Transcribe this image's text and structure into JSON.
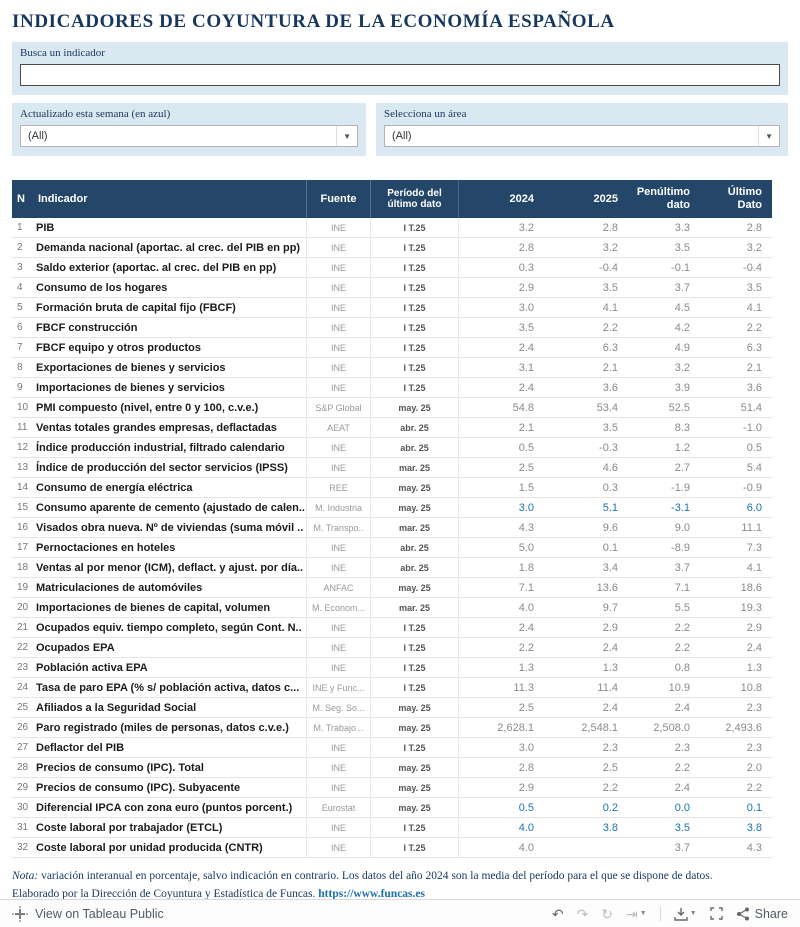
{
  "title": "INDICADORES DE COYUNTURA DE LA ECONOMÍA ESPAÑOLA",
  "search": {
    "label": "Busca un indicador",
    "value": ""
  },
  "filters": [
    {
      "label": "Actualizado esta semana (en azul)",
      "value": "(All)"
    },
    {
      "label": "Selecciona un área",
      "value": "(All)"
    }
  ],
  "table": {
    "headers": [
      "N",
      "Indicador",
      "Fuente",
      "Período del último dato",
      "2024",
      "2025",
      "Penúltimo dato",
      "Último Dato"
    ],
    "rows": [
      {
        "n": "1",
        "indicador": "PIB",
        "fuente": "INE",
        "periodo": "I T.25",
        "y2024": "3.2",
        "y2025": "2.8",
        "penultimo": "3.3",
        "ultimo": "2.8",
        "updated": false
      },
      {
        "n": "2",
        "indicador": "Demanda nacional (aportac. al crec. del PIB en pp)",
        "fuente": "INE",
        "periodo": "I T.25",
        "y2024": "2.8",
        "y2025": "3.2",
        "penultimo": "3.5",
        "ultimo": "3.2",
        "updated": false
      },
      {
        "n": "3",
        "indicador": "Saldo exterior (aportac. al crec. del PIB en pp)",
        "fuente": "INE",
        "periodo": "I T.25",
        "y2024": "0.3",
        "y2025": "-0.4",
        "penultimo": "-0.1",
        "ultimo": "-0.4",
        "updated": false
      },
      {
        "n": "4",
        "indicador": "Consumo de los hogares",
        "fuente": "INE",
        "periodo": "I T.25",
        "y2024": "2.9",
        "y2025": "3.5",
        "penultimo": "3.7",
        "ultimo": "3.5",
        "updated": false
      },
      {
        "n": "5",
        "indicador": "Formación bruta de capital fijo (FBCF)",
        "fuente": "INE",
        "periodo": "I T.25",
        "y2024": "3.0",
        "y2025": "4.1",
        "penultimo": "4.5",
        "ultimo": "4.1",
        "updated": false
      },
      {
        "n": "6",
        "indicador": "FBCF construcción",
        "fuente": "INE",
        "periodo": "I T.25",
        "y2024": "3.5",
        "y2025": "2.2",
        "penultimo": "4.2",
        "ultimo": "2.2",
        "updated": false
      },
      {
        "n": "7",
        "indicador": "FBCF equipo y otros productos",
        "fuente": "INE",
        "periodo": "I T.25",
        "y2024": "2.4",
        "y2025": "6.3",
        "penultimo": "4.9",
        "ultimo": "6.3",
        "updated": false
      },
      {
        "n": "8",
        "indicador": "Exportaciones de bienes y servicios",
        "fuente": "INE",
        "periodo": "I T.25",
        "y2024": "3.1",
        "y2025": "2.1",
        "penultimo": "3.2",
        "ultimo": "2.1",
        "updated": false
      },
      {
        "n": "9",
        "indicador": "Importaciones de bienes y servicios",
        "fuente": "INE",
        "periodo": "I T.25",
        "y2024": "2.4",
        "y2025": "3.6",
        "penultimo": "3.9",
        "ultimo": "3.6",
        "updated": false
      },
      {
        "n": "10",
        "indicador": "PMI compuesto (nivel, entre 0 y 100, c.v.e.)",
        "fuente": "S&P Global",
        "periodo": "may. 25",
        "y2024": "54.8",
        "y2025": "53.4",
        "penultimo": "52.5",
        "ultimo": "51.4",
        "updated": false
      },
      {
        "n": "11",
        "indicador": "Ventas totales grandes empresas, deflactadas",
        "fuente": "AEAT",
        "periodo": "abr. 25",
        "y2024": "2.1",
        "y2025": "3.5",
        "penultimo": "8.3",
        "ultimo": "-1.0",
        "updated": false
      },
      {
        "n": "12",
        "indicador": "Índice producción industrial, filtrado calendario",
        "fuente": "INE",
        "periodo": "abr. 25",
        "y2024": "0.5",
        "y2025": "-0.3",
        "penultimo": "1.2",
        "ultimo": "0.5",
        "updated": false
      },
      {
        "n": "13",
        "indicador": "Índice de producción del sector servicios (IPSS)",
        "fuente": "INE",
        "periodo": "mar. 25",
        "y2024": "2.5",
        "y2025": "4.6",
        "penultimo": "2.7",
        "ultimo": "5.4",
        "updated": false
      },
      {
        "n": "14",
        "indicador": "Consumo de energía eléctrica",
        "fuente": "REE",
        "periodo": "may. 25",
        "y2024": "1.5",
        "y2025": "0.3",
        "penultimo": "-1.9",
        "ultimo": "-0.9",
        "updated": false
      },
      {
        "n": "15",
        "indicador": "Consumo aparente de cemento (ajustado de calen..",
        "fuente": "M. Industria",
        "periodo": "may. 25",
        "y2024": "3.0",
        "y2025": "5.1",
        "penultimo": "-3.1",
        "ultimo": "6.0",
        "updated": true
      },
      {
        "n": "16",
        "indicador": "Visados obra nueva. Nº de viviendas (suma móvil ..",
        "fuente": "M. Transpo..",
        "periodo": "mar. 25",
        "y2024": "4.3",
        "y2025": "9.6",
        "penultimo": "9.0",
        "ultimo": "11.1",
        "updated": false
      },
      {
        "n": "17",
        "indicador": "Pernoctaciones en hoteles",
        "fuente": "INE",
        "periodo": "abr. 25",
        "y2024": "5.0",
        "y2025": "0.1",
        "penultimo": "-8.9",
        "ultimo": "7.3",
        "updated": false
      },
      {
        "n": "18",
        "indicador": "Ventas al por menor (ICM), deflact. y ajust. por día..",
        "fuente": "INE",
        "periodo": "abr. 25",
        "y2024": "1.8",
        "y2025": "3.4",
        "penultimo": "3.7",
        "ultimo": "4.1",
        "updated": false
      },
      {
        "n": "19",
        "indicador": "Matriculaciones de automóviles",
        "fuente": "ANFAC",
        "periodo": "may. 25",
        "y2024": "7.1",
        "y2025": "13.6",
        "penultimo": "7.1",
        "ultimo": "18.6",
        "updated": false
      },
      {
        "n": "20",
        "indicador": "Importaciones de bienes de capital, volumen",
        "fuente": "M. Econom...",
        "periodo": "mar. 25",
        "y2024": "4.0",
        "y2025": "9.7",
        "penultimo": "5.5",
        "ultimo": "19.3",
        "updated": false
      },
      {
        "n": "21",
        "indicador": "Ocupados equiv. tiempo completo, según Cont. N..",
        "fuente": "INE",
        "periodo": "I T.25",
        "y2024": "2.4",
        "y2025": "2.9",
        "penultimo": "2.2",
        "ultimo": "2.9",
        "updated": false
      },
      {
        "n": "22",
        "indicador": "Ocupados EPA",
        "fuente": "INE",
        "periodo": "I T.25",
        "y2024": "2.2",
        "y2025": "2.4",
        "penultimo": "2.2",
        "ultimo": "2.4",
        "updated": false
      },
      {
        "n": "23",
        "indicador": "Población activa EPA",
        "fuente": "INE",
        "periodo": "I T.25",
        "y2024": "1.3",
        "y2025": "1.3",
        "penultimo": "0.8",
        "ultimo": "1.3",
        "updated": false
      },
      {
        "n": "24",
        "indicador": "Tasa de paro EPA (% s/ población activa, datos c...",
        "fuente": "INE y Func...",
        "periodo": "I T.25",
        "y2024": "11.3",
        "y2025": "11.4",
        "penultimo": "10.9",
        "ultimo": "10.8",
        "updated": false
      },
      {
        "n": "25",
        "indicador": "Afiliados a la Seguridad Social",
        "fuente": "M. Seg. So...",
        "periodo": "may. 25",
        "y2024": "2.5",
        "y2025": "2.4",
        "penultimo": "2.4",
        "ultimo": "2.3",
        "updated": false
      },
      {
        "n": "26",
        "indicador": "Paro registrado (miles de personas, datos c.v.e.)",
        "fuente": "M. Trabajo ..",
        "periodo": "may. 25",
        "y2024": "2,628.1",
        "y2025": "2,548.1",
        "penultimo": "2,508.0",
        "ultimo": "2,493.6",
        "updated": false
      },
      {
        "n": "27",
        "indicador": "Deflactor del PIB",
        "fuente": "INE",
        "periodo": "I T.25",
        "y2024": "3.0",
        "y2025": "2.3",
        "penultimo": "2.3",
        "ultimo": "2.3",
        "updated": false
      },
      {
        "n": "28",
        "indicador": "Precios de consumo (IPC). Total",
        "fuente": "INE",
        "periodo": "may. 25",
        "y2024": "2.8",
        "y2025": "2.5",
        "penultimo": "2.2",
        "ultimo": "2.0",
        "updated": false
      },
      {
        "n": "29",
        "indicador": "Precios de consumo (IPC). Subyacente",
        "fuente": "INE",
        "periodo": "may. 25",
        "y2024": "2.9",
        "y2025": "2.2",
        "penultimo": "2.4",
        "ultimo": "2.2",
        "updated": false
      },
      {
        "n": "30",
        "indicador": "Diferencial IPCA con zona euro (puntos porcent.)",
        "fuente": "Eurostat",
        "periodo": "may. 25",
        "y2024": "0.5",
        "y2025": "0.2",
        "penultimo": "0.0",
        "ultimo": "0.1",
        "updated": true
      },
      {
        "n": "31",
        "indicador": "Coste laboral por trabajador (ETCL)",
        "fuente": "INE",
        "periodo": "I T.25",
        "y2024": "4.0",
        "y2025": "3.8",
        "penultimo": "3.5",
        "ultimo": "3.8",
        "updated": true
      },
      {
        "n": "32",
        "indicador": "Coste laboral por unidad producida (CNTR)",
        "fuente": "INE",
        "periodo": "I T.25",
        "y2024": "4.0",
        "y2025": "",
        "penultimo": "3.7",
        "ultimo": "4.3",
        "updated": false
      }
    ]
  },
  "note": {
    "prefix": "Nota:",
    "line1": " variación interanual en porcentaje, salvo indicación en contrario. Los datos del año 2024 son la media del período para el que se dispone de datos.",
    "line2": "Elaborado por la Dirección de Coyuntura y Estadística de Funcas. ",
    "link": "https://www.funcas.es"
  },
  "toolbar": {
    "view_label": "View on Tableau Public",
    "share_label": "Share"
  },
  "colors": {
    "header_bg": "#244668",
    "accent_blue": "#1c74b1",
    "panel_bg": "#d9e8f1",
    "title_navy": "#17375e"
  }
}
